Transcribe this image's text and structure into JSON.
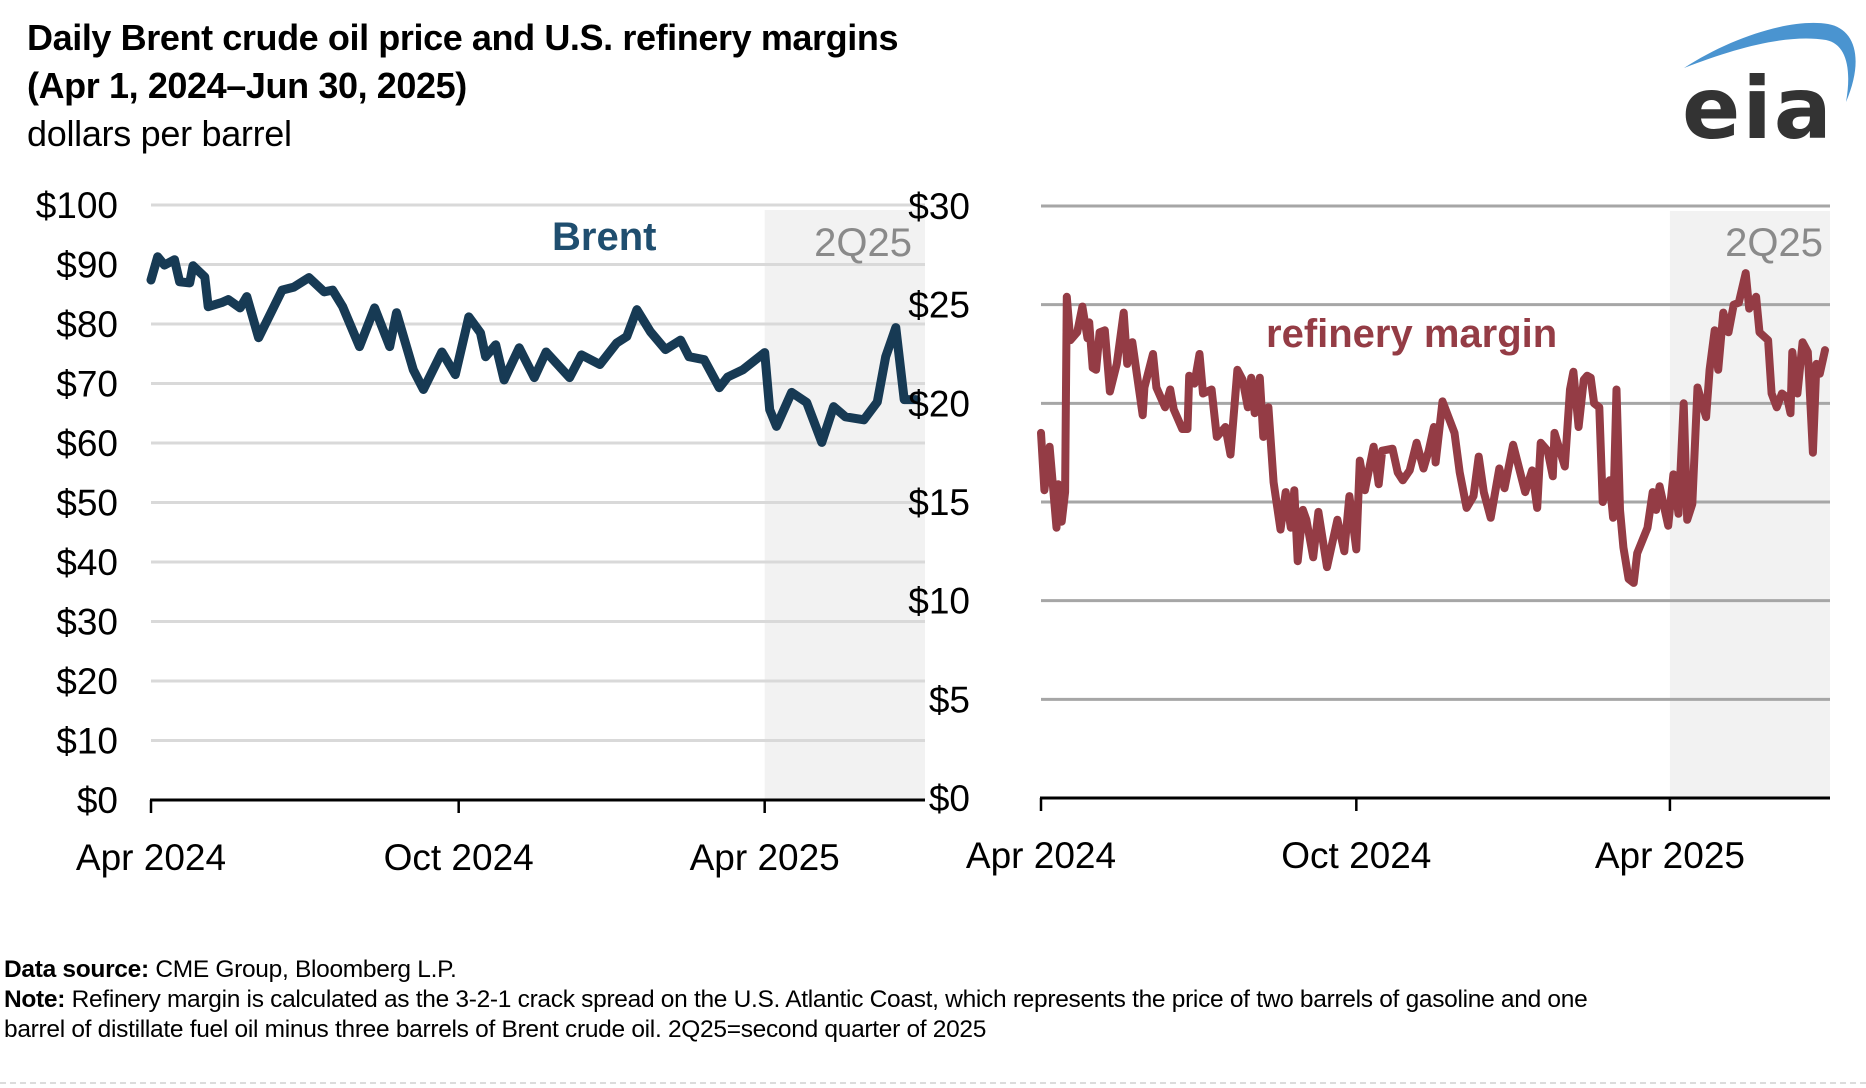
{
  "header": {
    "title_line1": "Daily Brent crude oil price and U.S. refinery margins",
    "title_line2": "(Apr 1, 2024–Jun 30, 2025)",
    "units": "dollars per barrel",
    "logo_text": "eia",
    "logo_icon": "eia-swoosh-logo",
    "colors": {
      "logo_text": "#333333",
      "logo_swoosh": "#4a94d0"
    }
  },
  "footer": {
    "source_label": "Data source:",
    "source_text": " CME Group, Bloomberg L.P.",
    "note_label": "Note:",
    "note_line1": " Refinery margin is calculated as the 3-2-1 crack spread on the U.S. Atlantic Coast, which represents the price of two barrels of gasoline and one",
    "note_line2": "barrel of distillate fuel oil minus three barrels of Brent crude oil. 2Q25=second quarter of 2025"
  },
  "chart_data": [
    {
      "type": "line",
      "title": "Brent",
      "xlabel": "",
      "ylabel": "dollars per barrel",
      "x_range": [
        "2024-04-01",
        "2025-06-30"
      ],
      "ylim": [
        0,
        100
      ],
      "y_ticks": [
        0,
        10,
        20,
        30,
        40,
        50,
        60,
        70,
        80,
        90,
        100
      ],
      "y_tick_labels": [
        "$0",
        "$10",
        "$20",
        "$30",
        "$40",
        "$50",
        "$60",
        "$70",
        "$80",
        "$90",
        "$100"
      ],
      "x_ticks": [
        "2024-04-01",
        "2024-10-01",
        "2025-04-01"
      ],
      "x_tick_labels": [
        "Apr 2024",
        "Oct 2024",
        "Apr 2025"
      ],
      "grid": true,
      "shaded_region": {
        "label": "2Q25",
        "start": "2025-04-01",
        "end": "2025-06-30",
        "color": "#f2f2f2"
      },
      "series": [
        {
          "name": "Brent",
          "color": "#173a54",
          "label_color": "#1f4e6f",
          "points": [
            [
              "2024-04-01",
              87.4
            ],
            [
              "2024-04-05",
              91.3
            ],
            [
              "2024-04-09",
              89.9
            ],
            [
              "2024-04-15",
              90.8
            ],
            [
              "2024-04-18",
              87.1
            ],
            [
              "2024-04-24",
              86.9
            ],
            [
              "2024-04-26",
              89.8
            ],
            [
              "2024-05-03",
              87.9
            ],
            [
              "2024-05-05",
              82.9
            ],
            [
              "2024-05-13",
              83.6
            ],
            [
              "2024-05-17",
              84.1
            ],
            [
              "2024-05-24",
              82.7
            ],
            [
              "2024-05-28",
              84.6
            ],
            [
              "2024-06-04",
              77.7
            ],
            [
              "2024-06-18",
              85.7
            ],
            [
              "2024-06-25",
              86.2
            ],
            [
              "2024-07-04",
              87.8
            ],
            [
              "2024-07-13",
              85.4
            ],
            [
              "2024-07-18",
              85.7
            ],
            [
              "2024-07-24",
              82.9
            ],
            [
              "2024-08-03",
              76.2
            ],
            [
              "2024-08-12",
              82.7
            ],
            [
              "2024-08-21",
              76.2
            ],
            [
              "2024-08-25",
              81.9
            ],
            [
              "2024-09-04",
              72.3
            ],
            [
              "2024-09-10",
              69.0
            ],
            [
              "2024-09-21",
              75.3
            ],
            [
              "2024-09-29",
              71.5
            ],
            [
              "2024-10-07",
              81.2
            ],
            [
              "2024-10-14",
              78.5
            ],
            [
              "2024-10-17",
              74.5
            ],
            [
              "2024-10-23",
              76.5
            ],
            [
              "2024-10-28",
              70.6
            ],
            [
              "2024-11-06",
              76.0
            ],
            [
              "2024-11-15",
              71.0
            ],
            [
              "2024-11-22",
              75.3
            ],
            [
              "2024-12-06",
              71.0
            ],
            [
              "2024-12-13",
              74.8
            ],
            [
              "2024-12-24",
              73.2
            ],
            [
              "2025-01-03",
              76.8
            ],
            [
              "2025-01-09",
              77.9
            ],
            [
              "2025-01-15",
              82.4
            ],
            [
              "2025-01-23",
              78.7
            ],
            [
              "2025-02-01",
              75.7
            ],
            [
              "2025-02-10",
              77.3
            ],
            [
              "2025-02-15",
              74.5
            ],
            [
              "2025-02-24",
              74.0
            ],
            [
              "2025-03-05",
              69.3
            ],
            [
              "2025-03-10",
              71.1
            ],
            [
              "2025-03-19",
              72.3
            ],
            [
              "2025-04-01",
              75.2
            ],
            [
              "2025-04-04",
              65.6
            ],
            [
              "2025-04-08",
              62.8
            ],
            [
              "2025-04-17",
              68.5
            ],
            [
              "2025-04-26",
              66.8
            ],
            [
              "2025-05-05",
              60.1
            ],
            [
              "2025-05-12",
              66.1
            ],
            [
              "2025-05-19",
              64.4
            ],
            [
              "2025-05-30",
              63.9
            ],
            [
              "2025-06-07",
              66.9
            ],
            [
              "2025-06-12",
              74.5
            ],
            [
              "2025-06-18",
              79.4
            ],
            [
              "2025-06-23",
              67.3
            ],
            [
              "2025-06-30",
              67.3
            ]
          ]
        }
      ]
    },
    {
      "type": "line",
      "title": "refinery margin",
      "xlabel": "",
      "ylabel": "dollars per barrel",
      "x_range": [
        "2024-04-01",
        "2025-06-30"
      ],
      "ylim": [
        0,
        30
      ],
      "y_ticks": [
        0,
        5,
        10,
        15,
        20,
        25,
        30
      ],
      "y_tick_labels": [
        "$0",
        "$5",
        "$10",
        "$15",
        "$20",
        "$25",
        "$30"
      ],
      "x_ticks": [
        "2024-04-01",
        "2024-10-01",
        "2025-04-01"
      ],
      "x_tick_labels": [
        "Apr 2024",
        "Oct 2024",
        "Apr 2025"
      ],
      "grid": true,
      "shaded_region": {
        "label": "2Q25",
        "start": "2025-04-01",
        "end": "2025-06-30",
        "color": "#f2f2f2"
      },
      "series": [
        {
          "name": "refinery margin",
          "color": "#943c45",
          "label_color": "#943c45",
          "points": [
            [
              "2024-04-01",
              18.5
            ],
            [
              "2024-04-03",
              15.6
            ],
            [
              "2024-04-06",
              17.8
            ],
            [
              "2024-04-10",
              13.7
            ],
            [
              "2024-04-11",
              15.9
            ],
            [
              "2024-04-13",
              14.0
            ],
            [
              "2024-04-15",
              15.5
            ],
            [
              "2024-04-16",
              25.4
            ],
            [
              "2024-04-18",
              23.2
            ],
            [
              "2024-04-22",
              23.6
            ],
            [
              "2024-04-25",
              24.9
            ],
            [
              "2024-04-28",
              23.3
            ],
            [
              "2024-04-29",
              24.1
            ],
            [
              "2024-05-01",
              21.8
            ],
            [
              "2024-05-03",
              21.7
            ],
            [
              "2024-05-05",
              23.6
            ],
            [
              "2024-05-08",
              23.7
            ],
            [
              "2024-05-11",
              20.6
            ],
            [
              "2024-05-15",
              22.0
            ],
            [
              "2024-05-19",
              24.6
            ],
            [
              "2024-05-21",
              22.0
            ],
            [
              "2024-05-24",
              23.1
            ],
            [
              "2024-05-30",
              19.4
            ],
            [
              "2024-05-31",
              20.8
            ],
            [
              "2024-06-05",
              22.5
            ],
            [
              "2024-06-07",
              20.8
            ],
            [
              "2024-06-12",
              19.8
            ],
            [
              "2024-06-15",
              20.7
            ],
            [
              "2024-06-17",
              19.7
            ],
            [
              "2024-06-22",
              18.7
            ],
            [
              "2024-06-25",
              18.7
            ],
            [
              "2024-06-26",
              21.4
            ],
            [
              "2024-06-29",
              21.0
            ],
            [
              "2024-07-02",
              22.5
            ],
            [
              "2024-07-04",
              20.5
            ],
            [
              "2024-07-09",
              20.7
            ],
            [
              "2024-07-12",
              18.3
            ],
            [
              "2024-07-17",
              18.8
            ],
            [
              "2024-07-20",
              17.4
            ],
            [
              "2024-07-24",
              21.7
            ],
            [
              "2024-07-27",
              21.2
            ],
            [
              "2024-07-30",
              19.8
            ],
            [
              "2024-08-01",
              21.3
            ],
            [
              "2024-08-03",
              19.5
            ],
            [
              "2024-08-06",
              21.3
            ],
            [
              "2024-08-08",
              18.3
            ],
            [
              "2024-08-11",
              19.8
            ],
            [
              "2024-08-14",
              16.0
            ],
            [
              "2024-08-18",
              13.6
            ],
            [
              "2024-08-21",
              15.5
            ],
            [
              "2024-08-24",
              13.7
            ],
            [
              "2024-08-26",
              15.6
            ],
            [
              "2024-08-28",
              12.0
            ],
            [
              "2024-08-31",
              14.6
            ],
            [
              "2024-09-02",
              14.1
            ],
            [
              "2024-09-06",
              12.2
            ],
            [
              "2024-09-09",
              14.5
            ],
            [
              "2024-09-14",
              11.7
            ],
            [
              "2024-09-20",
              14.1
            ],
            [
              "2024-09-24",
              12.5
            ],
            [
              "2024-09-27",
              15.3
            ],
            [
              "2024-10-01",
              12.6
            ],
            [
              "2024-10-03",
              17.1
            ],
            [
              "2024-10-06",
              15.6
            ],
            [
              "2024-10-11",
              17.8
            ],
            [
              "2024-10-14",
              15.9
            ],
            [
              "2024-10-16",
              17.6
            ],
            [
              "2024-10-22",
              17.7
            ],
            [
              "2024-10-25",
              16.5
            ],
            [
              "2024-10-28",
              16.1
            ],
            [
              "2024-11-01",
              16.6
            ],
            [
              "2024-11-05",
              18.0
            ],
            [
              "2024-11-09",
              16.7
            ],
            [
              "2024-11-12",
              17.6
            ],
            [
              "2024-11-15",
              18.8
            ],
            [
              "2024-11-16",
              17.0
            ],
            [
              "2024-11-20",
              20.1
            ],
            [
              "2024-11-27",
              18.5
            ],
            [
              "2024-11-30",
              16.5
            ],
            [
              "2024-12-04",
              14.7
            ],
            [
              "2024-12-08",
              15.3
            ],
            [
              "2024-12-11",
              17.3
            ],
            [
              "2024-12-14",
              15.5
            ],
            [
              "2024-12-18",
              14.2
            ],
            [
              "2024-12-23",
              16.7
            ],
            [
              "2024-12-26",
              15.7
            ],
            [
              "2024-12-31",
              17.9
            ],
            [
              "2025-01-07",
              15.5
            ],
            [
              "2025-01-11",
              16.6
            ],
            [
              "2025-01-14",
              14.7
            ],
            [
              "2025-01-16",
              18.0
            ],
            [
              "2025-01-20",
              17.6
            ],
            [
              "2025-01-23",
              16.3
            ],
            [
              "2025-01-24",
              18.5
            ],
            [
              "2025-01-30",
              16.8
            ],
            [
              "2025-02-02",
              20.7
            ],
            [
              "2025-02-04",
              21.6
            ],
            [
              "2025-02-07",
              18.8
            ],
            [
              "2025-02-10",
              21.2
            ],
            [
              "2025-02-12",
              21.4
            ],
            [
              "2025-02-14",
              21.3
            ],
            [
              "2025-02-16",
              20.0
            ],
            [
              "2025-02-19",
              19.8
            ],
            [
              "2025-02-21",
              15.0
            ],
            [
              "2025-02-25",
              16.1
            ],
            [
              "2025-02-27",
              14.2
            ],
            [
              "2025-03-01",
              20.7
            ],
            [
              "2025-03-03",
              14.6
            ],
            [
              "2025-03-05",
              12.7
            ],
            [
              "2025-03-08",
              11.1
            ],
            [
              "2025-03-11",
              10.9
            ],
            [
              "2025-03-13",
              12.4
            ],
            [
              "2025-03-19",
              13.7
            ],
            [
              "2025-03-22",
              15.5
            ],
            [
              "2025-03-24",
              14.6
            ],
            [
              "2025-03-26",
              15.8
            ],
            [
              "2025-03-31",
              13.8
            ],
            [
              "2025-04-03",
              16.4
            ],
            [
              "2025-04-06",
              14.4
            ],
            [
              "2025-04-09",
              20.0
            ],
            [
              "2025-04-11",
              14.1
            ],
            [
              "2025-04-14",
              14.9
            ],
            [
              "2025-04-17",
              20.8
            ],
            [
              "2025-04-22",
              19.3
            ],
            [
              "2025-04-24",
              21.7
            ],
            [
              "2025-04-27",
              23.7
            ],
            [
              "2025-04-29",
              21.7
            ],
            [
              "2025-05-02",
              24.6
            ],
            [
              "2025-05-05",
              23.6
            ],
            [
              "2025-05-08",
              25.0
            ],
            [
              "2025-05-11",
              25.1
            ],
            [
              "2025-05-15",
              26.6
            ],
            [
              "2025-05-17",
              24.8
            ],
            [
              "2025-05-21",
              25.4
            ],
            [
              "2025-05-23",
              23.6
            ],
            [
              "2025-05-28",
              23.2
            ],
            [
              "2025-05-30",
              20.5
            ],
            [
              "2025-06-02",
              19.8
            ],
            [
              "2025-06-05",
              20.5
            ],
            [
              "2025-06-08",
              20.3
            ],
            [
              "2025-06-10",
              19.5
            ],
            [
              "2025-06-11",
              22.6
            ],
            [
              "2025-06-14",
              20.5
            ],
            [
              "2025-06-17",
              23.1
            ],
            [
              "2025-06-20",
              22.6
            ],
            [
              "2025-06-23",
              17.5
            ],
            [
              "2025-06-25",
              22.0
            ],
            [
              "2025-06-27",
              21.5
            ],
            [
              "2025-06-30",
              22.7
            ]
          ]
        }
      ]
    }
  ]
}
